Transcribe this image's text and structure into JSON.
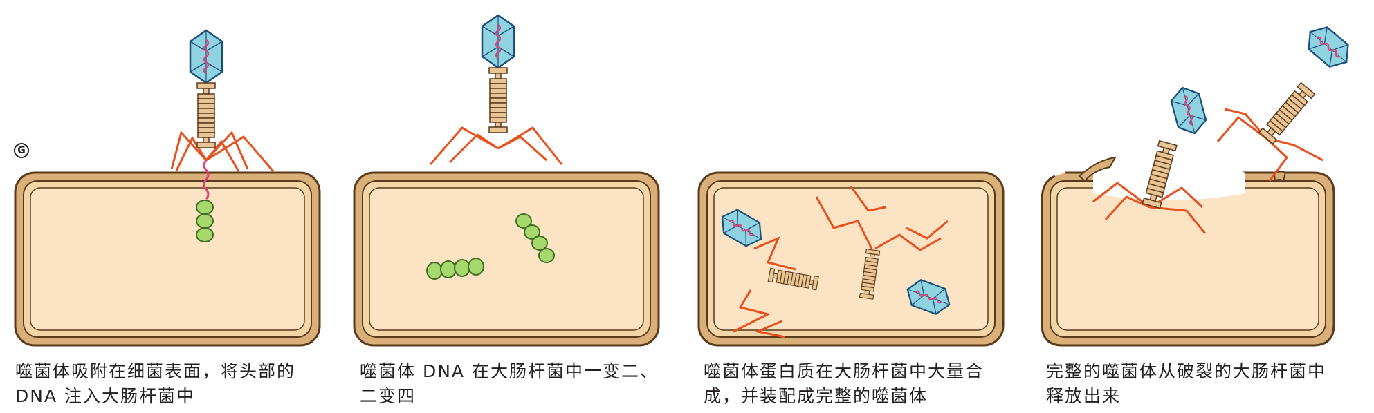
{
  "figure": {
    "marker": "G",
    "panels": [
      {
        "caption_lines": [
          "噬菌体吸附在细菌表面，将头部的",
          "DNA 注入大肠杆菌中"
        ]
      },
      {
        "caption_lines": [
          "噬菌体 DNA 在大肠杆菌中一变二、",
          "二变四"
        ]
      },
      {
        "caption_lines": [
          "噬菌体蛋白质在大肠杆菌中大量合",
          "成，并装配成完整的噬菌体"
        ]
      },
      {
        "caption_lines": [
          "完整的噬菌体从破裂的大肠杆菌中",
          "释放出来"
        ]
      }
    ]
  },
  "colors": {
    "cell_wall": "#b98a4f",
    "cell_wall_inner": "#f3d6a8",
    "cytoplasm": "#fbe3c4",
    "phage_head": "#8fd2e0",
    "phage_head_edge": "#1a4f7a",
    "phage_dna": "#e0407a",
    "tail_sheath": "#e9c596",
    "tail_fibers": "#e8501e",
    "dna_beads": "#a6d86e"
  }
}
